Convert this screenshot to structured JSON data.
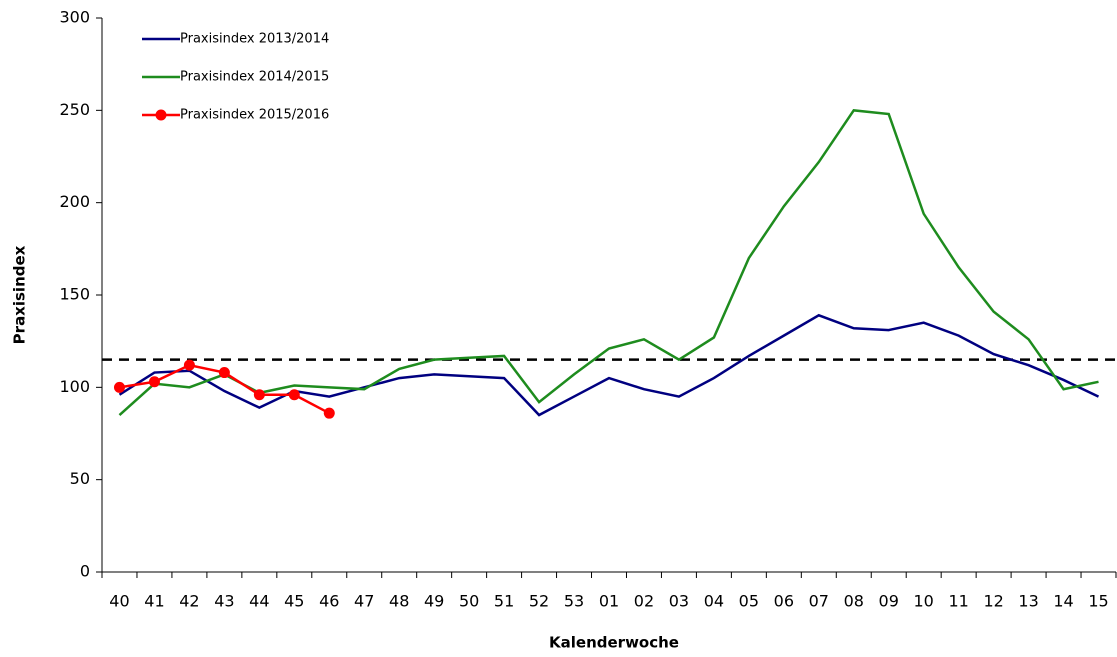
{
  "chart_data": {
    "type": "line",
    "x_label": "Kalenderwoche",
    "y_label": "Praxisindex",
    "categories": [
      "40",
      "41",
      "42",
      "43",
      "44",
      "45",
      "46",
      "47",
      "48",
      "49",
      "50",
      "51",
      "52",
      "53",
      "01",
      "02",
      "03",
      "04",
      "05",
      "06",
      "07",
      "08",
      "09",
      "10",
      "11",
      "12",
      "13",
      "14",
      "15"
    ],
    "series": [
      {
        "name": "Praxisindex 2013/2014",
        "color": "#000080",
        "markers": false,
        "values": [
          96,
          108,
          109,
          98,
          89,
          98,
          95,
          100,
          105,
          107,
          106,
          105,
          85,
          95,
          105,
          99,
          95,
          105,
          117,
          128,
          139,
          132,
          131,
          135,
          128,
          118,
          112,
          104,
          95
        ]
      },
      {
        "name": "Praxisindex 2014/2015",
        "color": "#1e8c1e",
        "markers": false,
        "values": [
          85,
          102,
          100,
          107,
          97,
          101,
          100,
          99,
          110,
          115,
          116,
          117,
          92,
          107,
          121,
          126,
          115,
          127,
          170,
          198,
          222,
          250,
          248,
          194,
          165,
          141,
          126,
          99,
          103
        ]
      },
      {
        "name": "Praxisindex 2015/2016",
        "color": "#ff0000",
        "markers": true,
        "values": [
          100,
          103,
          112,
          108,
          96,
          96,
          86,
          null,
          null,
          null,
          null,
          null,
          null,
          null,
          null,
          null,
          null,
          null,
          null,
          null,
          null,
          null,
          null,
          null,
          null,
          null,
          null,
          null,
          null
        ]
      }
    ],
    "threshold": 115,
    "ylim": [
      0,
      300
    ],
    "yticks": [
      0,
      50,
      100,
      150,
      200,
      250,
      300
    ],
    "legend": "top-left"
  }
}
